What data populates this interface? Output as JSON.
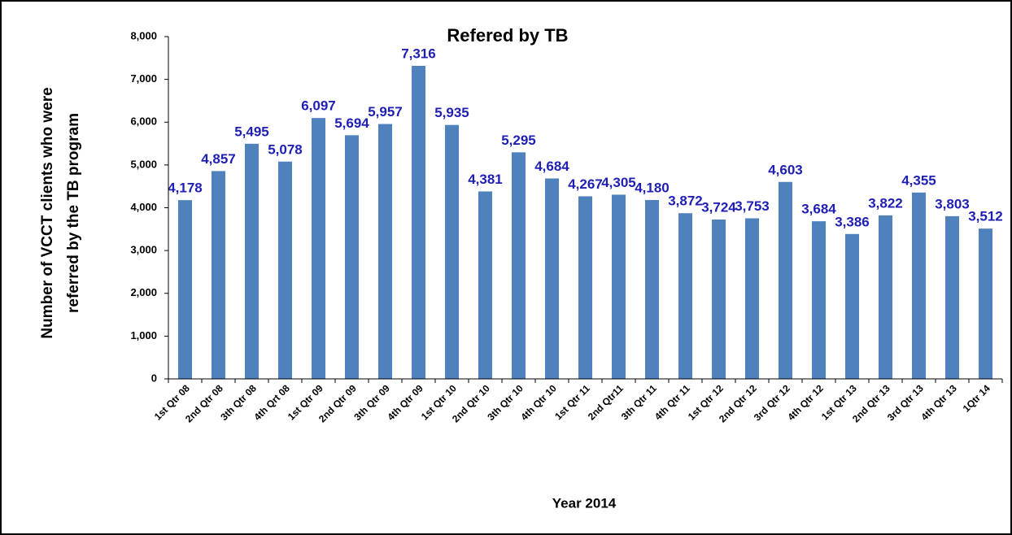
{
  "chart_data": {
    "type": "bar",
    "title": "Refered by TB",
    "xlabel": "Year 2014",
    "ylabel": [
      "Number of VCCT clients who were",
      "referred by the TB program"
    ],
    "categories": [
      "1st Qtr 08",
      "2nd Qtr 08",
      "3th Qtr 08",
      "4th Qrt 08",
      "1st Qtr 09",
      "2nd Qtr 09",
      "3th Qtr 09",
      "4th Qtr 09",
      "1st Qtr 10",
      "2nd Qtr 10",
      "3th Qtr 10",
      "4th Qtr 10",
      "1st Qtr 11",
      "2nd Qtr11",
      "3th Qtr 11",
      "4th Qtr 11",
      "1st Qtr 12",
      "2nd Qtr 12",
      "3rd Qtr 12",
      "4th Qtr 12",
      "1st Qtr 13",
      "2nd Qtr 13",
      "3rd Qtr 13",
      "4th Qtr 13",
      "1Qtr 14"
    ],
    "values": [
      4178,
      4857,
      5495,
      5078,
      6097,
      5694,
      5957,
      7316,
      5935,
      4381,
      5295,
      4684,
      4267,
      4305,
      4180,
      3872,
      3724,
      3753,
      4603,
      3684,
      3386,
      3822,
      4355,
      3803,
      3512
    ],
    "value_labels": [
      "4,178",
      "4,857",
      "5,495",
      "5,078",
      "6,097",
      "5,694",
      "5,957",
      "7,316",
      "5,935",
      "4,381",
      "5,295",
      "4,684",
      "4,267",
      "4,305",
      "4,180",
      "3,872",
      "3,724",
      "3,753",
      "4,603",
      "3,684",
      "3,386",
      "3,822",
      "4,355",
      "3,803",
      "3,512"
    ],
    "color": "#4f81bd",
    "ylim": [
      0,
      8000
    ],
    "yticks": [
      0,
      {
        "value": 1000,
        "label": "1,000"
      },
      {
        "value": 2000,
        "label": "2,000"
      },
      {
        "value": 3000,
        "label": "3,000"
      },
      {
        "value": 4000,
        "label": "4,000"
      },
      {
        "value": 5000,
        "label": "5,000"
      },
      {
        "value": 6000,
        "label": "6,000"
      },
      {
        "value": 7000,
        "label": "7,000"
      },
      {
        "value": 8000,
        "label": "8,000"
      }
    ],
    "grid": false
  }
}
